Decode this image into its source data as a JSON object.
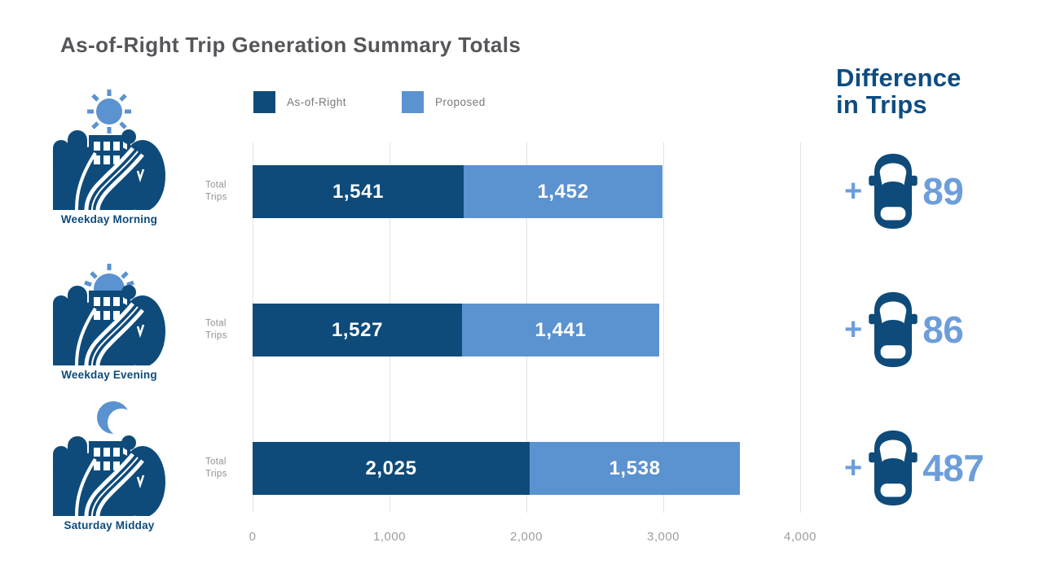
{
  "title": "As-of-Right Trip Generation Summary Totals",
  "legend": [
    {
      "label": "As-of-Right",
      "color": "#0e4b7a"
    },
    {
      "label": "Proposed",
      "color": "#5b92d0"
    }
  ],
  "colors": {
    "dark_blue": "#0e4b7a",
    "light_blue": "#5b92d0",
    "difference_blue": "#6d9edb",
    "header_blue": "#0d4c82",
    "title_gray": "#545659",
    "muted_gray": "#8f9296",
    "tick_gray": "#9b9da0",
    "grid_gray": "#e2e3e4"
  },
  "chart_data": {
    "type": "bar",
    "orientation": "horizontal",
    "stacked": true,
    "title": "As-of-Right Trip Generation Summary Totals",
    "categories": [
      "Weekday Morning",
      "Weekday Evening",
      "Saturday Midday"
    ],
    "category_icons": [
      "sun-over-city",
      "sunset-over-city",
      "moon-over-city"
    ],
    "series": [
      {
        "name": "As-of-Right",
        "color": "#0e4b7a",
        "values": [
          1541,
          1527,
          2025
        ],
        "values_formatted": [
          "1,541",
          "1,527",
          "2,025"
        ]
      },
      {
        "name": "Proposed",
        "color": "#5b92d0",
        "values": [
          1452,
          1441,
          1538
        ],
        "values_formatted": [
          "1,452",
          "1,441",
          "1,538"
        ]
      }
    ],
    "row_value_label_lines": [
      "Total",
      "Trips"
    ],
    "differences": {
      "label_lines": [
        "Difference",
        "in Trips"
      ],
      "prefix": "+",
      "values": [
        89,
        86,
        487
      ],
      "values_formatted": [
        "89",
        "86",
        "487"
      ]
    },
    "x_axis": {
      "min": 0,
      "max": 4000,
      "ticks": [
        "0",
        "1,000",
        "2,000",
        "3,000",
        "4,000"
      ]
    },
    "grid": true,
    "legend_position": "top"
  }
}
